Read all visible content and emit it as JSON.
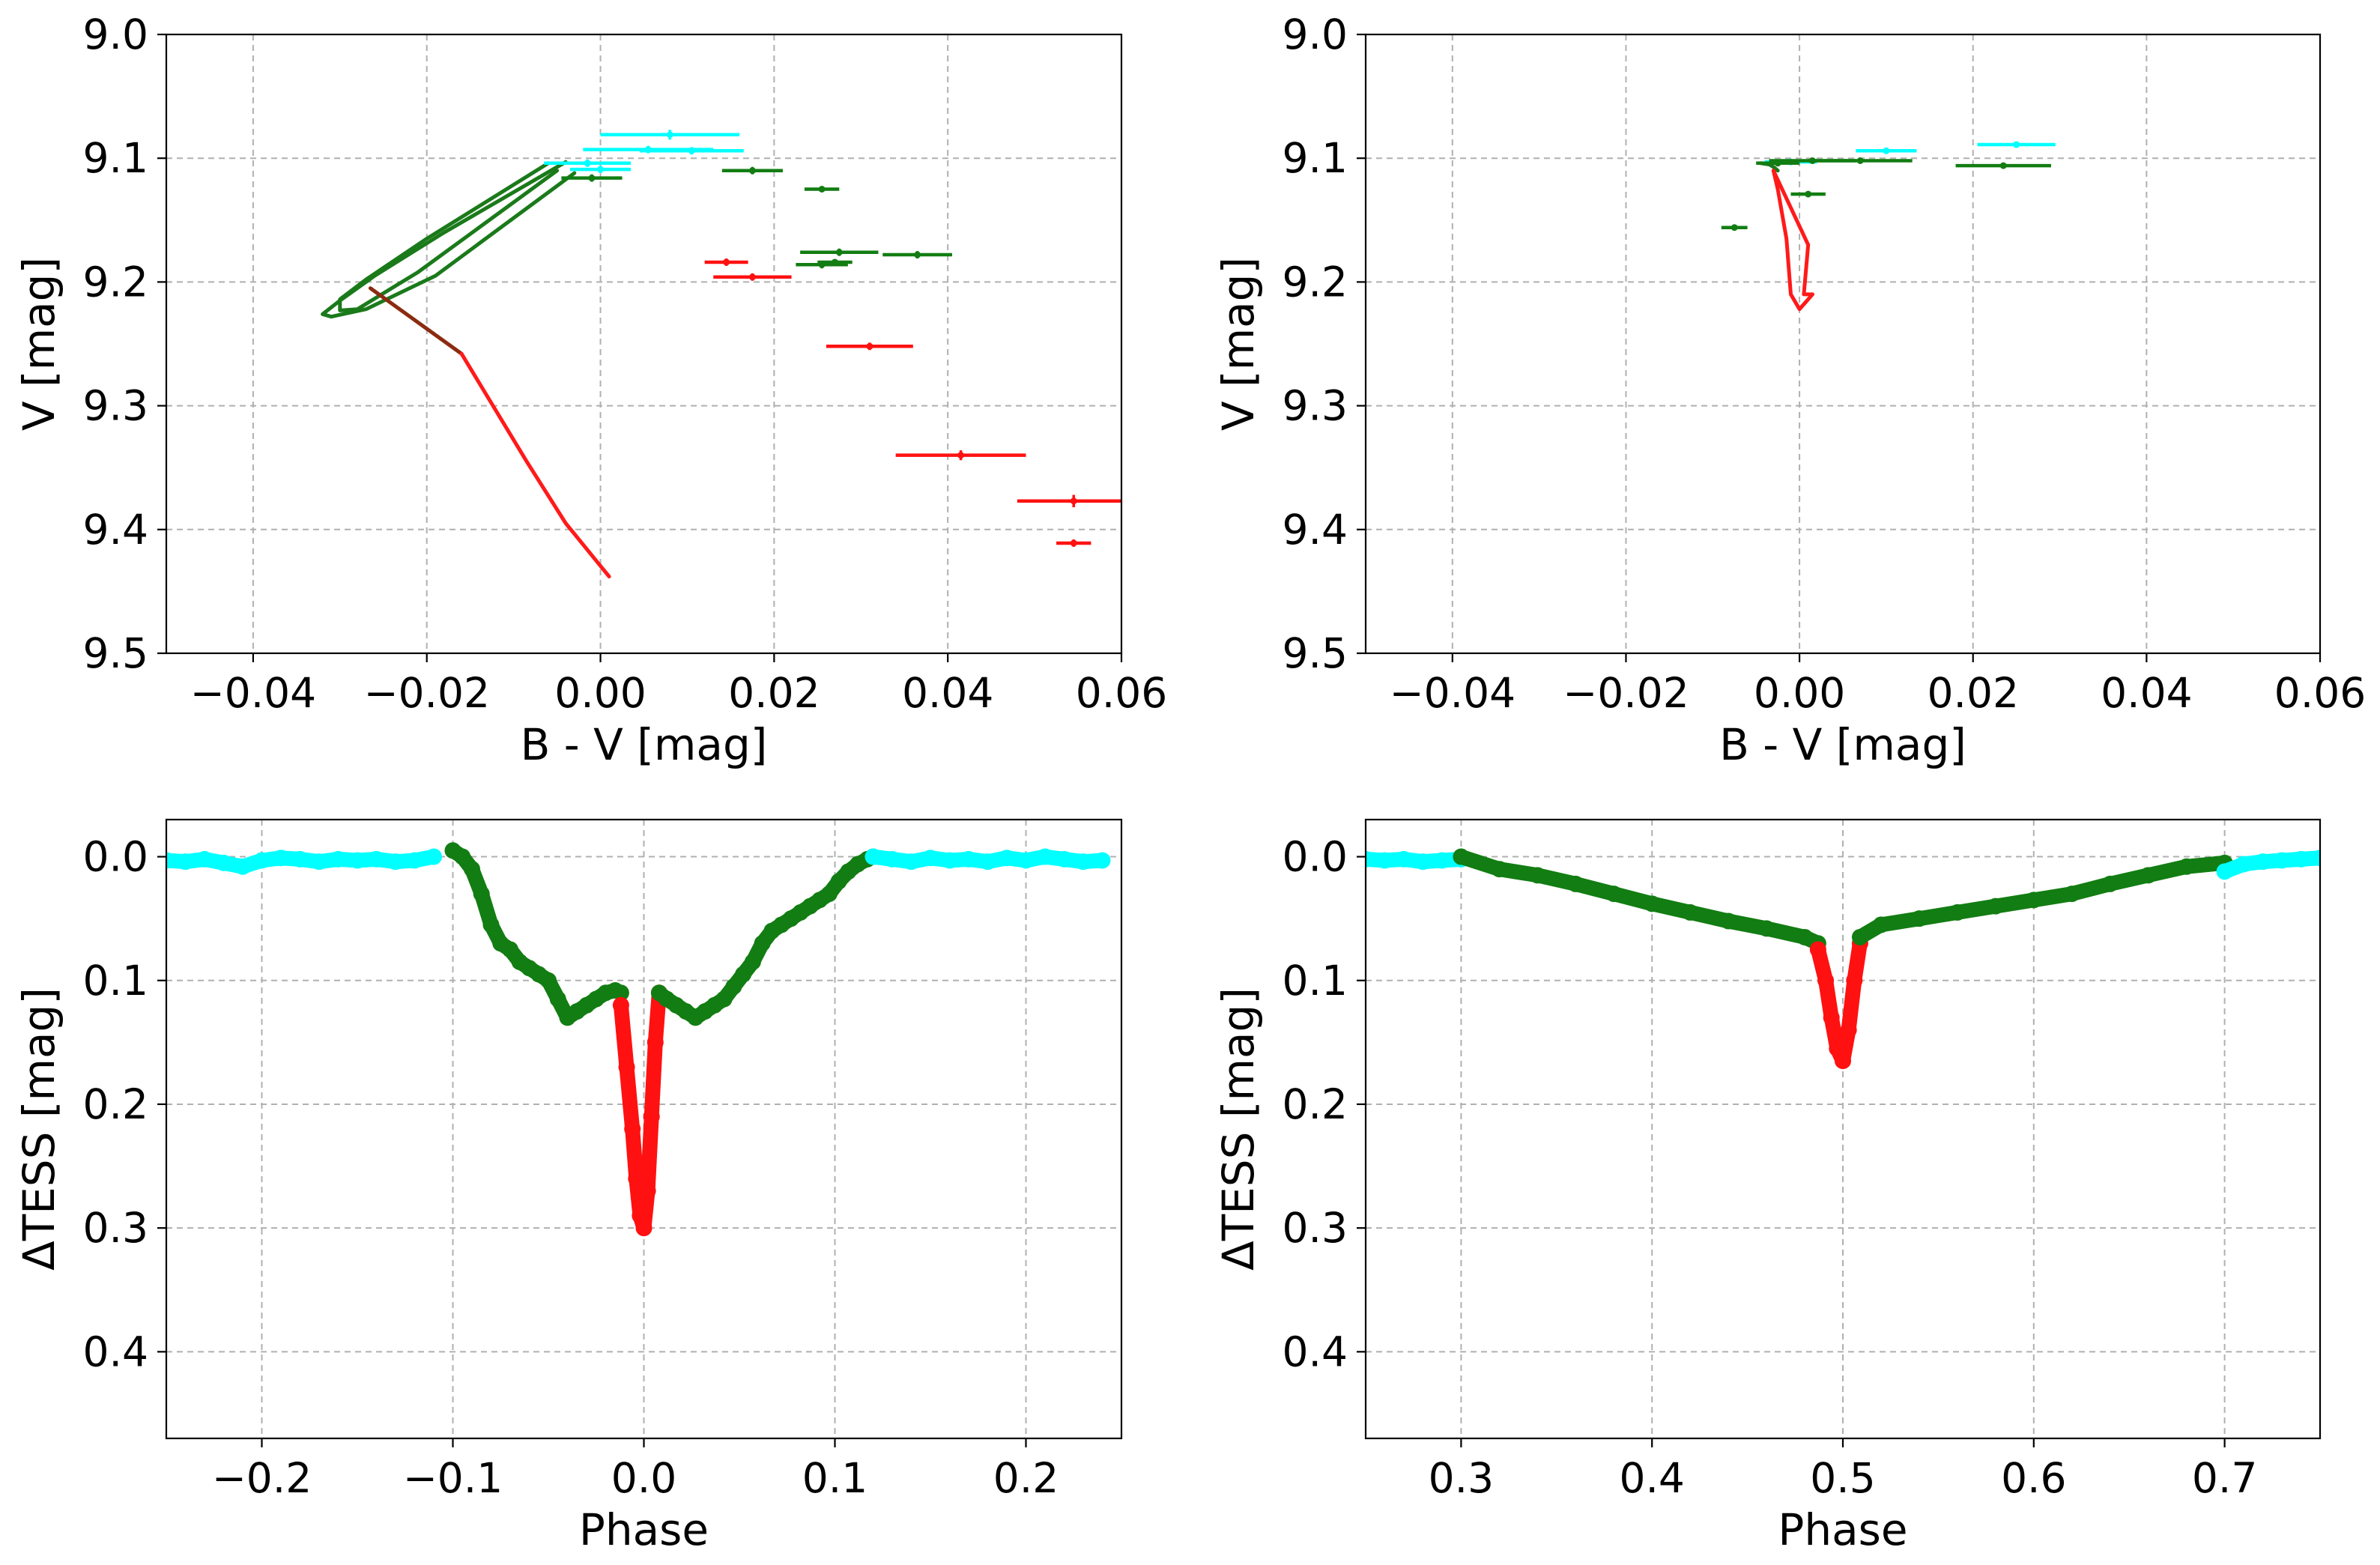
{
  "chart_data": [
    {
      "id": "top-left",
      "type": "scatter",
      "title": "",
      "xlabel": "B - V [mag]",
      "ylabel": "V [mag]",
      "xlim": [
        -0.05,
        0.06
      ],
      "ylim": [
        9.5,
        9.0
      ],
      "y_inverted": true,
      "grid": true,
      "xticks": [
        -0.04,
        -0.02,
        0.0,
        0.02,
        0.04,
        0.06
      ],
      "xtick_labels": [
        "−0.04",
        "−0.02",
        "0.00",
        "0.02",
        "0.04",
        "0.06"
      ],
      "yticks": [
        9.0,
        9.1,
        9.2,
        9.3,
        9.4,
        9.5
      ],
      "ytick_labels": [
        "9.0",
        "9.1",
        "9.2",
        "9.3",
        "9.4",
        "9.5"
      ],
      "lines": [
        {
          "name": "green-track-outer",
          "color": "#1a7a1a",
          "x": [
            -0.004,
            -0.018,
            -0.026,
            -0.03,
            -0.032,
            -0.031,
            -0.027,
            -0.019,
            -0.003
          ],
          "y": [
            9.103,
            9.16,
            9.195,
            9.215,
            9.226,
            9.228,
            9.222,
            9.195,
            9.112
          ]
        },
        {
          "name": "green-track-inner",
          "color": "#1a7a1a",
          "x": [
            -0.006,
            -0.02,
            -0.027,
            -0.03,
            -0.03,
            -0.028,
            -0.021,
            -0.005
          ],
          "y": [
            9.104,
            9.165,
            9.198,
            9.214,
            9.223,
            9.222,
            9.192,
            9.11
          ]
        },
        {
          "name": "brown-track",
          "color": "#8b2b10",
          "x": [
            -0.0265,
            -0.016
          ],
          "y": [
            9.205,
            9.258
          ]
        },
        {
          "name": "red-track",
          "color": "#ff1a1a",
          "x": [
            -0.016,
            -0.0085,
            -0.004,
            0.001
          ],
          "y": [
            9.258,
            9.345,
            9.395,
            9.438
          ]
        }
      ],
      "points": [
        {
          "color": "cyan",
          "x": 0.008,
          "y": 9.081,
          "xerr": 0.008,
          "yerr": 0.004
        },
        {
          "color": "cyan",
          "x": 0.0055,
          "y": 9.093,
          "xerr": 0.0075,
          "yerr": 0.003
        },
        {
          "color": "cyan",
          "x": 0.0105,
          "y": 9.094,
          "xerr": 0.006,
          "yerr": 0.003
        },
        {
          "color": "cyan",
          "x": -0.0015,
          "y": 9.104,
          "xerr": 0.005,
          "yerr": 0.003
        },
        {
          "color": "cyan",
          "x": 0.0,
          "y": 9.109,
          "xerr": 0.0035,
          "yerr": 0.003
        },
        {
          "color": "green",
          "x": -0.001,
          "y": 9.116,
          "xerr": 0.0035,
          "yerr": 0.003
        },
        {
          "color": "green",
          "x": 0.0175,
          "y": 9.11,
          "xerr": 0.0035,
          "yerr": 0.003
        },
        {
          "color": "green",
          "x": 0.0255,
          "y": 9.125,
          "xerr": 0.002,
          "yerr": 0.002
        },
        {
          "color": "green",
          "x": 0.0275,
          "y": 9.176,
          "xerr": 0.0045,
          "yerr": 0.003
        },
        {
          "color": "green",
          "x": 0.0365,
          "y": 9.178,
          "xerr": 0.004,
          "yerr": 0.003
        },
        {
          "color": "green",
          "x": 0.0255,
          "y": 9.186,
          "xerr": 0.003,
          "yerr": 0.003
        },
        {
          "color": "green",
          "x": 0.027,
          "y": 9.184,
          "xerr": 0.002,
          "yerr": 0.002
        },
        {
          "color": "red",
          "x": 0.0145,
          "y": 9.184,
          "xerr": 0.0025,
          "yerr": 0.003
        },
        {
          "color": "red",
          "x": 0.0175,
          "y": 9.196,
          "xerr": 0.0045,
          "yerr": 0.003
        },
        {
          "color": "red",
          "x": 0.031,
          "y": 9.252,
          "xerr": 0.005,
          "yerr": 0.003
        },
        {
          "color": "red",
          "x": 0.0415,
          "y": 9.34,
          "xerr": 0.0075,
          "yerr": 0.004
        },
        {
          "color": "red",
          "x": 0.0545,
          "y": 9.377,
          "xerr": 0.0065,
          "yerr": 0.005
        },
        {
          "color": "red",
          "x": 0.0545,
          "y": 9.411,
          "xerr": 0.002,
          "yerr": 0.003
        }
      ]
    },
    {
      "id": "top-right",
      "type": "scatter",
      "title": "",
      "xlabel": "B - V [mag]",
      "ylabel": "V [mag]",
      "xlim": [
        -0.05,
        0.06
      ],
      "ylim": [
        9.5,
        9.0
      ],
      "y_inverted": true,
      "grid": true,
      "xticks": [
        -0.04,
        -0.02,
        0.0,
        0.02,
        0.04,
        0.06
      ],
      "xtick_labels": [
        "−0.04",
        "−0.02",
        "0.00",
        "0.02",
        "0.04",
        "0.06"
      ],
      "yticks": [
        9.0,
        9.1,
        9.2,
        9.3,
        9.4,
        9.5
      ],
      "ytick_labels": [
        "9.0",
        "9.1",
        "9.2",
        "9.3",
        "9.4",
        "9.5"
      ],
      "lines": [
        {
          "name": "green-track",
          "color": "#1a7a1a",
          "x": [
            -0.0045,
            -0.0035,
            -0.003,
            -0.0025
          ],
          "y": [
            9.104,
            9.105,
            9.107,
            9.11
          ]
        },
        {
          "name": "red-track",
          "color": "#ff1a1a",
          "x": [
            -0.003,
            -0.002,
            0.001,
            0.0005,
            0.0015,
            0.0,
            -0.001,
            -0.0015,
            -0.0025,
            -0.003
          ],
          "y": [
            9.11,
            9.125,
            9.17,
            9.21,
            9.21,
            9.222,
            9.21,
            9.165,
            9.125,
            9.11
          ]
        }
      ],
      "points": [
        {
          "color": "cyan",
          "x": 0.025,
          "y": 9.089,
          "xerr": 0.0045,
          "yerr": 0.002
        },
        {
          "color": "cyan",
          "x": 0.01,
          "y": 9.094,
          "xerr": 0.0035,
          "yerr": 0.002
        },
        {
          "color": "cyan",
          "x": -0.001,
          "y": 9.103,
          "xerr": 0.003,
          "yerr": 0.002
        },
        {
          "color": "green",
          "x": 0.0015,
          "y": 9.102,
          "xerr": 0.005,
          "yerr": 0.002
        },
        {
          "color": "green",
          "x": 0.007,
          "y": 9.102,
          "xerr": 0.006,
          "yerr": 0.002
        },
        {
          "color": "green",
          "x": 0.0235,
          "y": 9.106,
          "xerr": 0.0055,
          "yerr": 0.002
        },
        {
          "color": "green",
          "x": -0.0025,
          "y": 9.104,
          "xerr": 0.0025,
          "yerr": 0.002
        },
        {
          "color": "green",
          "x": 0.001,
          "y": 9.129,
          "xerr": 0.002,
          "yerr": 0.002
        },
        {
          "color": "green",
          "x": -0.0075,
          "y": 9.156,
          "xerr": 0.0015,
          "yerr": 0.002
        }
      ]
    },
    {
      "id": "bottom-left",
      "type": "scatter",
      "title": "",
      "xlabel": "Phase",
      "ylabel": "ΔTESS [mag]",
      "xlim": [
        -0.25,
        0.25
      ],
      "ylim": [
        0.47,
        -0.03
      ],
      "y_inverted": true,
      "grid": true,
      "xticks": [
        -0.2,
        -0.1,
        0.0,
        0.1,
        0.2
      ],
      "xtick_labels": [
        "−0.2",
        "−0.1",
        "0.0",
        "0.1",
        "0.2"
      ],
      "yticks": [
        0.0,
        0.1,
        0.2,
        0.3,
        0.4
      ],
      "ytick_labels": [
        "0.0",
        "0.1",
        "0.2",
        "0.3",
        "0.4"
      ],
      "series": [
        {
          "name": "out-of-eclipse-left",
          "color": "cyan",
          "x": [
            -0.25,
            -0.24,
            -0.23,
            -0.22,
            -0.21,
            -0.2,
            -0.19,
            -0.18,
            -0.17,
            -0.16,
            -0.15,
            -0.14,
            -0.13,
            -0.12,
            -0.11
          ],
          "y": [
            0.003,
            0.004,
            0.002,
            0.005,
            0.008,
            0.003,
            0.001,
            0.002,
            0.004,
            0.002,
            0.003,
            0.002,
            0.004,
            0.003,
            0.0
          ]
        },
        {
          "name": "eclipse-wing-left",
          "color": "green",
          "x": [
            -0.1,
            -0.095,
            -0.09,
            -0.085,
            -0.08,
            -0.075,
            -0.07,
            -0.065,
            -0.06,
            -0.055,
            -0.05,
            -0.045,
            -0.04,
            -0.035,
            -0.03,
            -0.025,
            -0.02,
            -0.015,
            -0.012
          ],
          "y": [
            -0.005,
            0.0,
            0.01,
            0.03,
            0.055,
            0.07,
            0.075,
            0.085,
            0.09,
            0.095,
            0.1,
            0.115,
            0.13,
            0.125,
            0.12,
            0.115,
            0.11,
            0.108,
            0.11
          ]
        },
        {
          "name": "eclipse-core",
          "color": "red",
          "x": [
            -0.012,
            -0.009,
            -0.006,
            -0.004,
            -0.002,
            0.0,
            0.002,
            0.004,
            0.006,
            0.008
          ],
          "y": [
            0.12,
            0.17,
            0.22,
            0.26,
            0.29,
            0.3,
            0.27,
            0.21,
            0.15,
            0.11
          ]
        },
        {
          "name": "eclipse-wing-right",
          "color": "green",
          "x": [
            0.008,
            0.012,
            0.017,
            0.022,
            0.027,
            0.032,
            0.037,
            0.042,
            0.047,
            0.052,
            0.057,
            0.062,
            0.067,
            0.072,
            0.077,
            0.082,
            0.087,
            0.092,
            0.097,
            0.102,
            0.107,
            0.112,
            0.117,
            0.12
          ],
          "y": [
            0.11,
            0.115,
            0.12,
            0.125,
            0.13,
            0.125,
            0.12,
            0.115,
            0.105,
            0.095,
            0.085,
            0.07,
            0.06,
            0.055,
            0.05,
            0.045,
            0.04,
            0.035,
            0.03,
            0.02,
            0.012,
            0.006,
            0.002,
            0.0
          ]
        },
        {
          "name": "out-of-eclipse-right",
          "color": "cyan",
          "x": [
            0.12,
            0.13,
            0.14,
            0.15,
            0.16,
            0.17,
            0.18,
            0.19,
            0.2,
            0.21,
            0.22,
            0.23,
            0.24
          ],
          "y": [
            0.0,
            0.002,
            0.004,
            0.001,
            0.003,
            0.002,
            0.004,
            0.001,
            0.003,
            0.0,
            0.002,
            0.004,
            0.003
          ]
        }
      ]
    },
    {
      "id": "bottom-right",
      "type": "scatter",
      "title": "",
      "xlabel": "Phase",
      "ylabel": "ΔTESS [mag]",
      "xlim": [
        0.25,
        0.75
      ],
      "ylim": [
        0.47,
        -0.03
      ],
      "y_inverted": true,
      "grid": true,
      "xticks": [
        0.3,
        0.4,
        0.5,
        0.6,
        0.7
      ],
      "xtick_labels": [
        "0.3",
        "0.4",
        "0.5",
        "0.6",
        "0.7"
      ],
      "yticks": [
        0.0,
        0.1,
        0.2,
        0.3,
        0.4
      ],
      "ytick_labels": [
        "0.0",
        "0.1",
        "0.2",
        "0.3",
        "0.4"
      ],
      "series": [
        {
          "name": "out-of-eclipse-left",
          "color": "cyan",
          "x": [
            0.25,
            0.26,
            0.27,
            0.28,
            0.29,
            0.3
          ],
          "y": [
            0.002,
            0.003,
            0.002,
            0.004,
            0.003,
            0.002
          ]
        },
        {
          "name": "eclipse-wing-left",
          "color": "green",
          "x": [
            0.3,
            0.32,
            0.34,
            0.36,
            0.38,
            0.4,
            0.42,
            0.44,
            0.46,
            0.48,
            0.487
          ],
          "y": [
            0.0,
            0.01,
            0.015,
            0.022,
            0.03,
            0.038,
            0.045,
            0.052,
            0.058,
            0.065,
            0.07
          ]
        },
        {
          "name": "eclipse-core",
          "color": "red",
          "x": [
            0.487,
            0.491,
            0.494,
            0.497,
            0.5,
            0.503,
            0.506,
            0.509
          ],
          "y": [
            0.075,
            0.1,
            0.13,
            0.155,
            0.165,
            0.14,
            0.1,
            0.07
          ]
        },
        {
          "name": "eclipse-wing-right",
          "color": "green",
          "x": [
            0.509,
            0.52,
            0.54,
            0.56,
            0.58,
            0.6,
            0.62,
            0.64,
            0.66,
            0.68,
            0.7
          ],
          "y": [
            0.065,
            0.055,
            0.05,
            0.045,
            0.04,
            0.035,
            0.03,
            0.022,
            0.015,
            0.008,
            0.005
          ]
        },
        {
          "name": "out-of-eclipse-right",
          "color": "cyan",
          "x": [
            0.7,
            0.71,
            0.72,
            0.73,
            0.74,
            0.75
          ],
          "y": [
            0.012,
            0.006,
            0.004,
            0.003,
            0.002,
            0.001
          ]
        }
      ]
    }
  ]
}
